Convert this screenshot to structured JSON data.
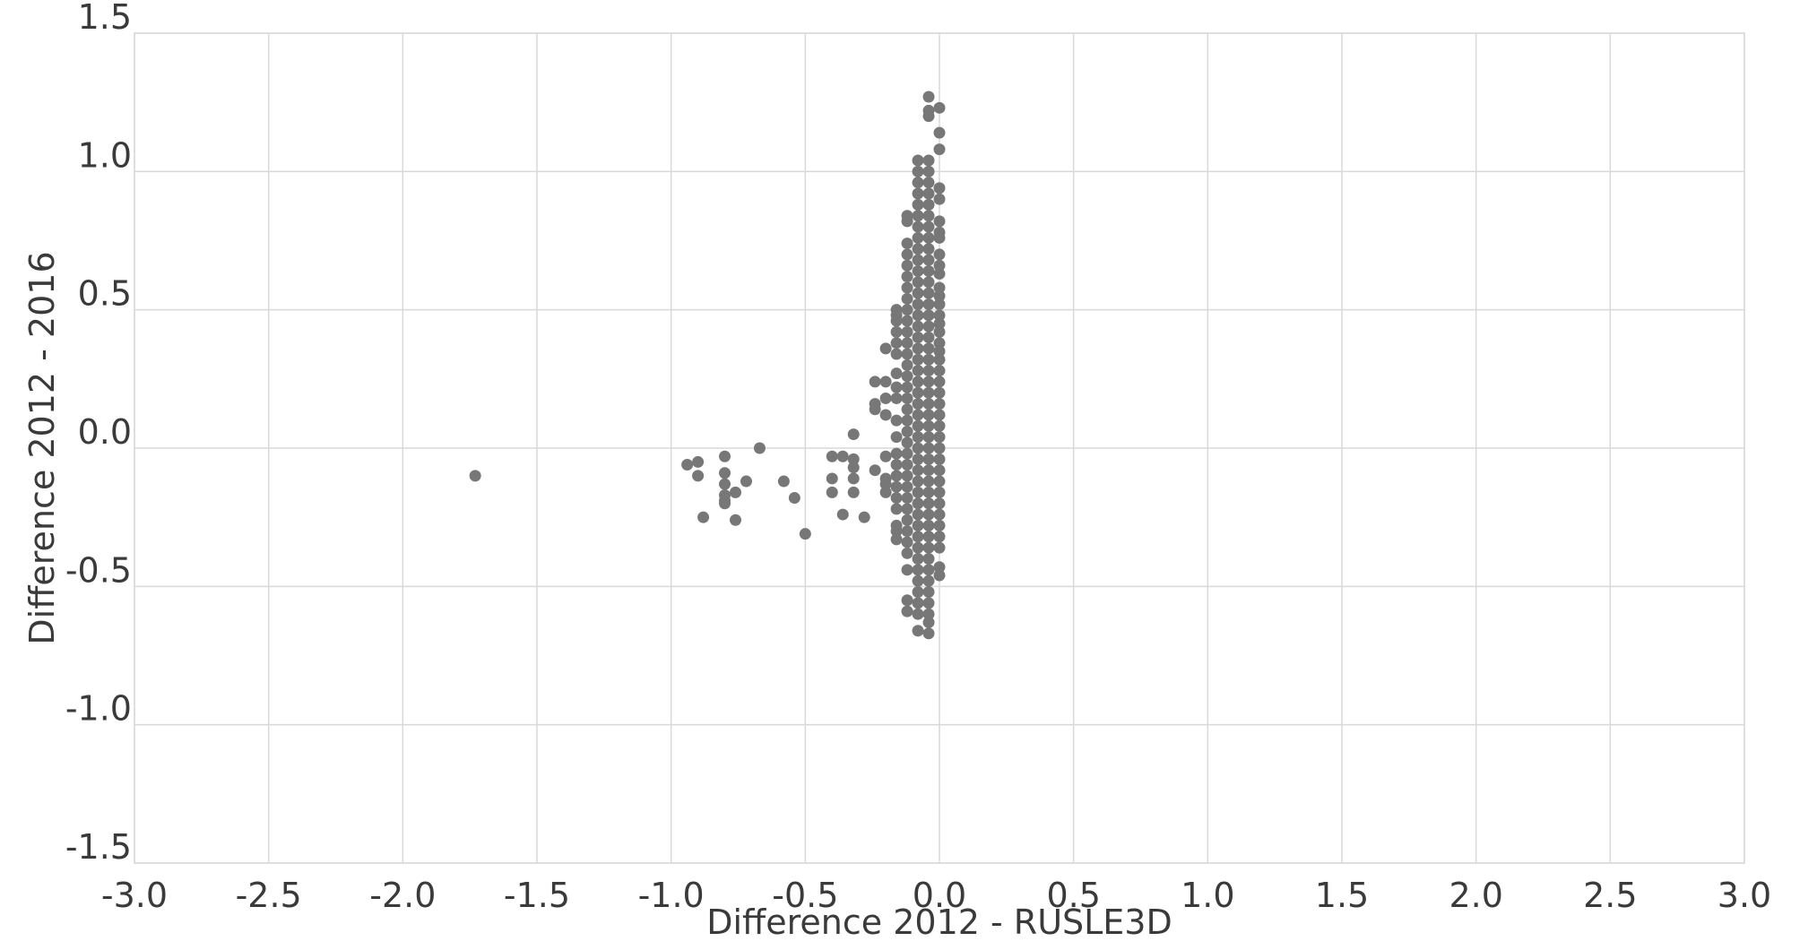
{
  "chart_data": {
    "type": "scatter",
    "title": "",
    "xlabel": "Difference 2012 - RUSLE3D",
    "ylabel": "Difference 2012 - 2016",
    "xlim": [
      -3.0,
      3.0
    ],
    "ylim": [
      -1.5,
      1.5
    ],
    "xticks": [
      -3.0,
      -2.5,
      -2.0,
      -1.5,
      -1.0,
      -0.5,
      0.0,
      0.5,
      1.0,
      1.5,
      2.0,
      2.5,
      3.0
    ],
    "yticks": [
      -1.5,
      -1.0,
      -0.5,
      0.0,
      0.5,
      1.0,
      1.5
    ],
    "grid": true,
    "legend": "none",
    "point_color": "#777777",
    "grid_color": "#d9d9d9",
    "text_color": "#3a3a3a",
    "points": [
      [
        -1.73,
        -0.1
      ],
      [
        -0.94,
        -0.06
      ],
      [
        -0.9,
        -0.05
      ],
      [
        -0.9,
        -0.1
      ],
      [
        -0.88,
        -0.25
      ],
      [
        -0.8,
        -0.03
      ],
      [
        -0.8,
        -0.09
      ],
      [
        -0.8,
        -0.13
      ],
      [
        -0.8,
        -0.17
      ],
      [
        -0.8,
        -0.19
      ],
      [
        -0.8,
        -0.2
      ],
      [
        -0.76,
        -0.16
      ],
      [
        -0.76,
        -0.26
      ],
      [
        -0.72,
        -0.12
      ],
      [
        -0.67,
        0.0
      ],
      [
        -0.58,
        -0.12
      ],
      [
        -0.54,
        -0.18
      ],
      [
        -0.5,
        -0.31
      ],
      [
        -0.4,
        -0.03
      ],
      [
        -0.4,
        -0.11
      ],
      [
        -0.4,
        -0.16
      ],
      [
        -0.36,
        -0.03
      ],
      [
        -0.36,
        -0.24
      ],
      [
        -0.32,
        0.05
      ],
      [
        -0.32,
        -0.04
      ],
      [
        -0.32,
        -0.07
      ],
      [
        -0.32,
        -0.11
      ],
      [
        -0.32,
        -0.16
      ],
      [
        -0.28,
        -0.25
      ],
      [
        -0.24,
        0.24
      ],
      [
        -0.24,
        0.16
      ],
      [
        -0.24,
        0.14
      ],
      [
        -0.24,
        -0.08
      ],
      [
        -0.2,
        0.36
      ],
      [
        -0.2,
        0.24
      ],
      [
        -0.2,
        0.18
      ],
      [
        -0.2,
        0.12
      ],
      [
        -0.2,
        -0.03
      ],
      [
        -0.2,
        -0.11
      ],
      [
        -0.2,
        -0.13
      ],
      [
        -0.2,
        -0.16
      ],
      [
        -0.16,
        0.5
      ],
      [
        -0.16,
        0.48
      ],
      [
        -0.16,
        0.46
      ],
      [
        -0.16,
        0.42
      ],
      [
        -0.16,
        0.38
      ],
      [
        -0.16,
        0.34
      ],
      [
        -0.16,
        0.27
      ],
      [
        -0.16,
        0.22
      ],
      [
        -0.16,
        0.18
      ],
      [
        -0.16,
        0.1
      ],
      [
        -0.16,
        0.04
      ],
      [
        -0.16,
        -0.02
      ],
      [
        -0.16,
        -0.06
      ],
      [
        -0.16,
        -0.1
      ],
      [
        -0.16,
        -0.14
      ],
      [
        -0.16,
        -0.18
      ],
      [
        -0.16,
        -0.22
      ],
      [
        -0.16,
        -0.28
      ],
      [
        -0.16,
        -0.3
      ],
      [
        -0.16,
        -0.33
      ],
      [
        -0.12,
        0.84
      ],
      [
        -0.12,
        0.82
      ],
      [
        -0.12,
        0.74
      ],
      [
        -0.12,
        0.7
      ],
      [
        -0.12,
        0.66
      ],
      [
        -0.12,
        0.62
      ],
      [
        -0.12,
        0.58
      ],
      [
        -0.12,
        0.54
      ],
      [
        -0.12,
        0.5
      ],
      [
        -0.12,
        0.46
      ],
      [
        -0.12,
        0.42
      ],
      [
        -0.12,
        0.38
      ],
      [
        -0.12,
        0.34
      ],
      [
        -0.12,
        0.3
      ],
      [
        -0.12,
        0.26
      ],
      [
        -0.12,
        0.22
      ],
      [
        -0.12,
        0.18
      ],
      [
        -0.12,
        0.14
      ],
      [
        -0.12,
        0.1
      ],
      [
        -0.12,
        0.06
      ],
      [
        -0.12,
        0.02
      ],
      [
        -0.12,
        -0.02
      ],
      [
        -0.12,
        -0.06
      ],
      [
        -0.12,
        -0.1
      ],
      [
        -0.12,
        -0.14
      ],
      [
        -0.12,
        -0.18
      ],
      [
        -0.12,
        -0.22
      ],
      [
        -0.12,
        -0.26
      ],
      [
        -0.12,
        -0.3
      ],
      [
        -0.12,
        -0.34
      ],
      [
        -0.12,
        -0.38
      ],
      [
        -0.12,
        -0.44
      ],
      [
        -0.12,
        -0.55
      ],
      [
        -0.12,
        -0.59
      ],
      [
        -0.08,
        1.04
      ],
      [
        -0.08,
        1.0
      ],
      [
        -0.08,
        0.96
      ],
      [
        -0.08,
        0.92
      ],
      [
        -0.08,
        0.88
      ],
      [
        -0.08,
        0.84
      ],
      [
        -0.08,
        0.8
      ],
      [
        -0.08,
        0.76
      ],
      [
        -0.08,
        0.72
      ],
      [
        -0.08,
        0.68
      ],
      [
        -0.08,
        0.64
      ],
      [
        -0.08,
        0.6
      ],
      [
        -0.08,
        0.56
      ],
      [
        -0.08,
        0.52
      ],
      [
        -0.08,
        0.48
      ],
      [
        -0.08,
        0.44
      ],
      [
        -0.08,
        0.4
      ],
      [
        -0.08,
        0.36
      ],
      [
        -0.08,
        0.32
      ],
      [
        -0.08,
        0.28
      ],
      [
        -0.08,
        0.24
      ],
      [
        -0.08,
        0.2
      ],
      [
        -0.08,
        0.16
      ],
      [
        -0.08,
        0.12
      ],
      [
        -0.08,
        0.08
      ],
      [
        -0.08,
        0.04
      ],
      [
        -0.08,
        0.0
      ],
      [
        -0.08,
        -0.04
      ],
      [
        -0.08,
        -0.08
      ],
      [
        -0.08,
        -0.12
      ],
      [
        -0.08,
        -0.16
      ],
      [
        -0.08,
        -0.2
      ],
      [
        -0.08,
        -0.24
      ],
      [
        -0.08,
        -0.28
      ],
      [
        -0.08,
        -0.32
      ],
      [
        -0.08,
        -0.36
      ],
      [
        -0.08,
        -0.4
      ],
      [
        -0.08,
        -0.44
      ],
      [
        -0.08,
        -0.48
      ],
      [
        -0.08,
        -0.52
      ],
      [
        -0.08,
        -0.56
      ],
      [
        -0.08,
        -0.6
      ],
      [
        -0.08,
        -0.66
      ],
      [
        -0.04,
        1.27
      ],
      [
        -0.04,
        1.22
      ],
      [
        -0.04,
        1.2
      ],
      [
        -0.04,
        1.04
      ],
      [
        -0.04,
        1.0
      ],
      [
        -0.04,
        0.96
      ],
      [
        -0.04,
        0.92
      ],
      [
        -0.04,
        0.88
      ],
      [
        -0.04,
        0.84
      ],
      [
        -0.04,
        0.8
      ],
      [
        -0.04,
        0.76
      ],
      [
        -0.04,
        0.72
      ],
      [
        -0.04,
        0.68
      ],
      [
        -0.04,
        0.64
      ],
      [
        -0.04,
        0.6
      ],
      [
        -0.04,
        0.56
      ],
      [
        -0.04,
        0.52
      ],
      [
        -0.04,
        0.48
      ],
      [
        -0.04,
        0.44
      ],
      [
        -0.04,
        0.4
      ],
      [
        -0.04,
        0.36
      ],
      [
        -0.04,
        0.32
      ],
      [
        -0.04,
        0.28
      ],
      [
        -0.04,
        0.24
      ],
      [
        -0.04,
        0.2
      ],
      [
        -0.04,
        0.16
      ],
      [
        -0.04,
        0.12
      ],
      [
        -0.04,
        0.08
      ],
      [
        -0.04,
        0.04
      ],
      [
        -0.04,
        0.0
      ],
      [
        -0.04,
        -0.04
      ],
      [
        -0.04,
        -0.08
      ],
      [
        -0.04,
        -0.12
      ],
      [
        -0.04,
        -0.16
      ],
      [
        -0.04,
        -0.2
      ],
      [
        -0.04,
        -0.24
      ],
      [
        -0.04,
        -0.28
      ],
      [
        -0.04,
        -0.32
      ],
      [
        -0.04,
        -0.36
      ],
      [
        -0.04,
        -0.4
      ],
      [
        -0.04,
        -0.44
      ],
      [
        -0.04,
        -0.48
      ],
      [
        -0.04,
        -0.52
      ],
      [
        -0.04,
        -0.56
      ],
      [
        -0.04,
        -0.6
      ],
      [
        -0.04,
        -0.63
      ],
      [
        -0.04,
        -0.67
      ],
      [
        0.0,
        1.23
      ],
      [
        0.0,
        1.14
      ],
      [
        0.0,
        1.08
      ],
      [
        0.0,
        0.94
      ],
      [
        0.0,
        0.9
      ],
      [
        0.0,
        0.82
      ],
      [
        0.0,
        0.78
      ],
      [
        0.0,
        0.76
      ],
      [
        0.0,
        0.7
      ],
      [
        0.0,
        0.66
      ],
      [
        0.0,
        0.63
      ],
      [
        0.0,
        0.58
      ],
      [
        0.0,
        0.55
      ],
      [
        0.0,
        0.52
      ],
      [
        0.0,
        0.48
      ],
      [
        0.0,
        0.45
      ],
      [
        0.0,
        0.42
      ],
      [
        0.0,
        0.38
      ],
      [
        0.0,
        0.35
      ],
      [
        0.0,
        0.32
      ],
      [
        0.0,
        0.28
      ],
      [
        0.0,
        0.24
      ],
      [
        0.0,
        0.2
      ],
      [
        0.0,
        0.16
      ],
      [
        0.0,
        0.12
      ],
      [
        0.0,
        0.08
      ],
      [
        0.0,
        0.04
      ],
      [
        0.0,
        0.0
      ],
      [
        0.0,
        -0.04
      ],
      [
        0.0,
        -0.08
      ],
      [
        0.0,
        -0.12
      ],
      [
        0.0,
        -0.16
      ],
      [
        0.0,
        -0.2
      ],
      [
        0.0,
        -0.24
      ],
      [
        0.0,
        -0.28
      ],
      [
        0.0,
        -0.32
      ],
      [
        0.0,
        -0.36
      ],
      [
        0.0,
        -0.43
      ],
      [
        0.0,
        -0.46
      ]
    ]
  }
}
